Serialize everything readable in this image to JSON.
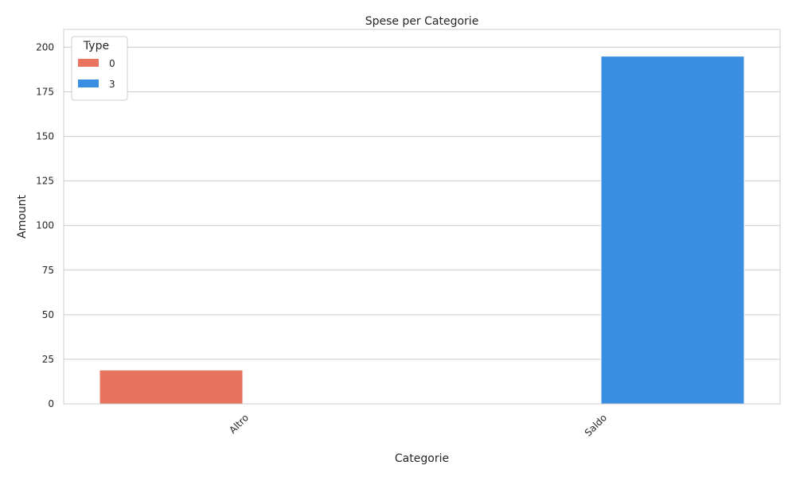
{
  "chart_data": {
    "type": "bar",
    "title": "Spese per Categorie",
    "xlabel": "Categorie",
    "ylabel": "Amount",
    "categories": [
      "Altro",
      "Saldo"
    ],
    "series": [
      {
        "name": "0",
        "color": "#e8735e",
        "values": [
          19,
          null
        ]
      },
      {
        "name": "3",
        "color": "#3b8fe3",
        "values": [
          null,
          195
        ]
      }
    ],
    "ylim": [
      0,
      210
    ],
    "yticks": [
      0,
      25,
      50,
      75,
      100,
      125,
      150,
      175,
      200
    ],
    "grid": true,
    "legend": {
      "title": "Type",
      "placement": "top-left"
    }
  }
}
